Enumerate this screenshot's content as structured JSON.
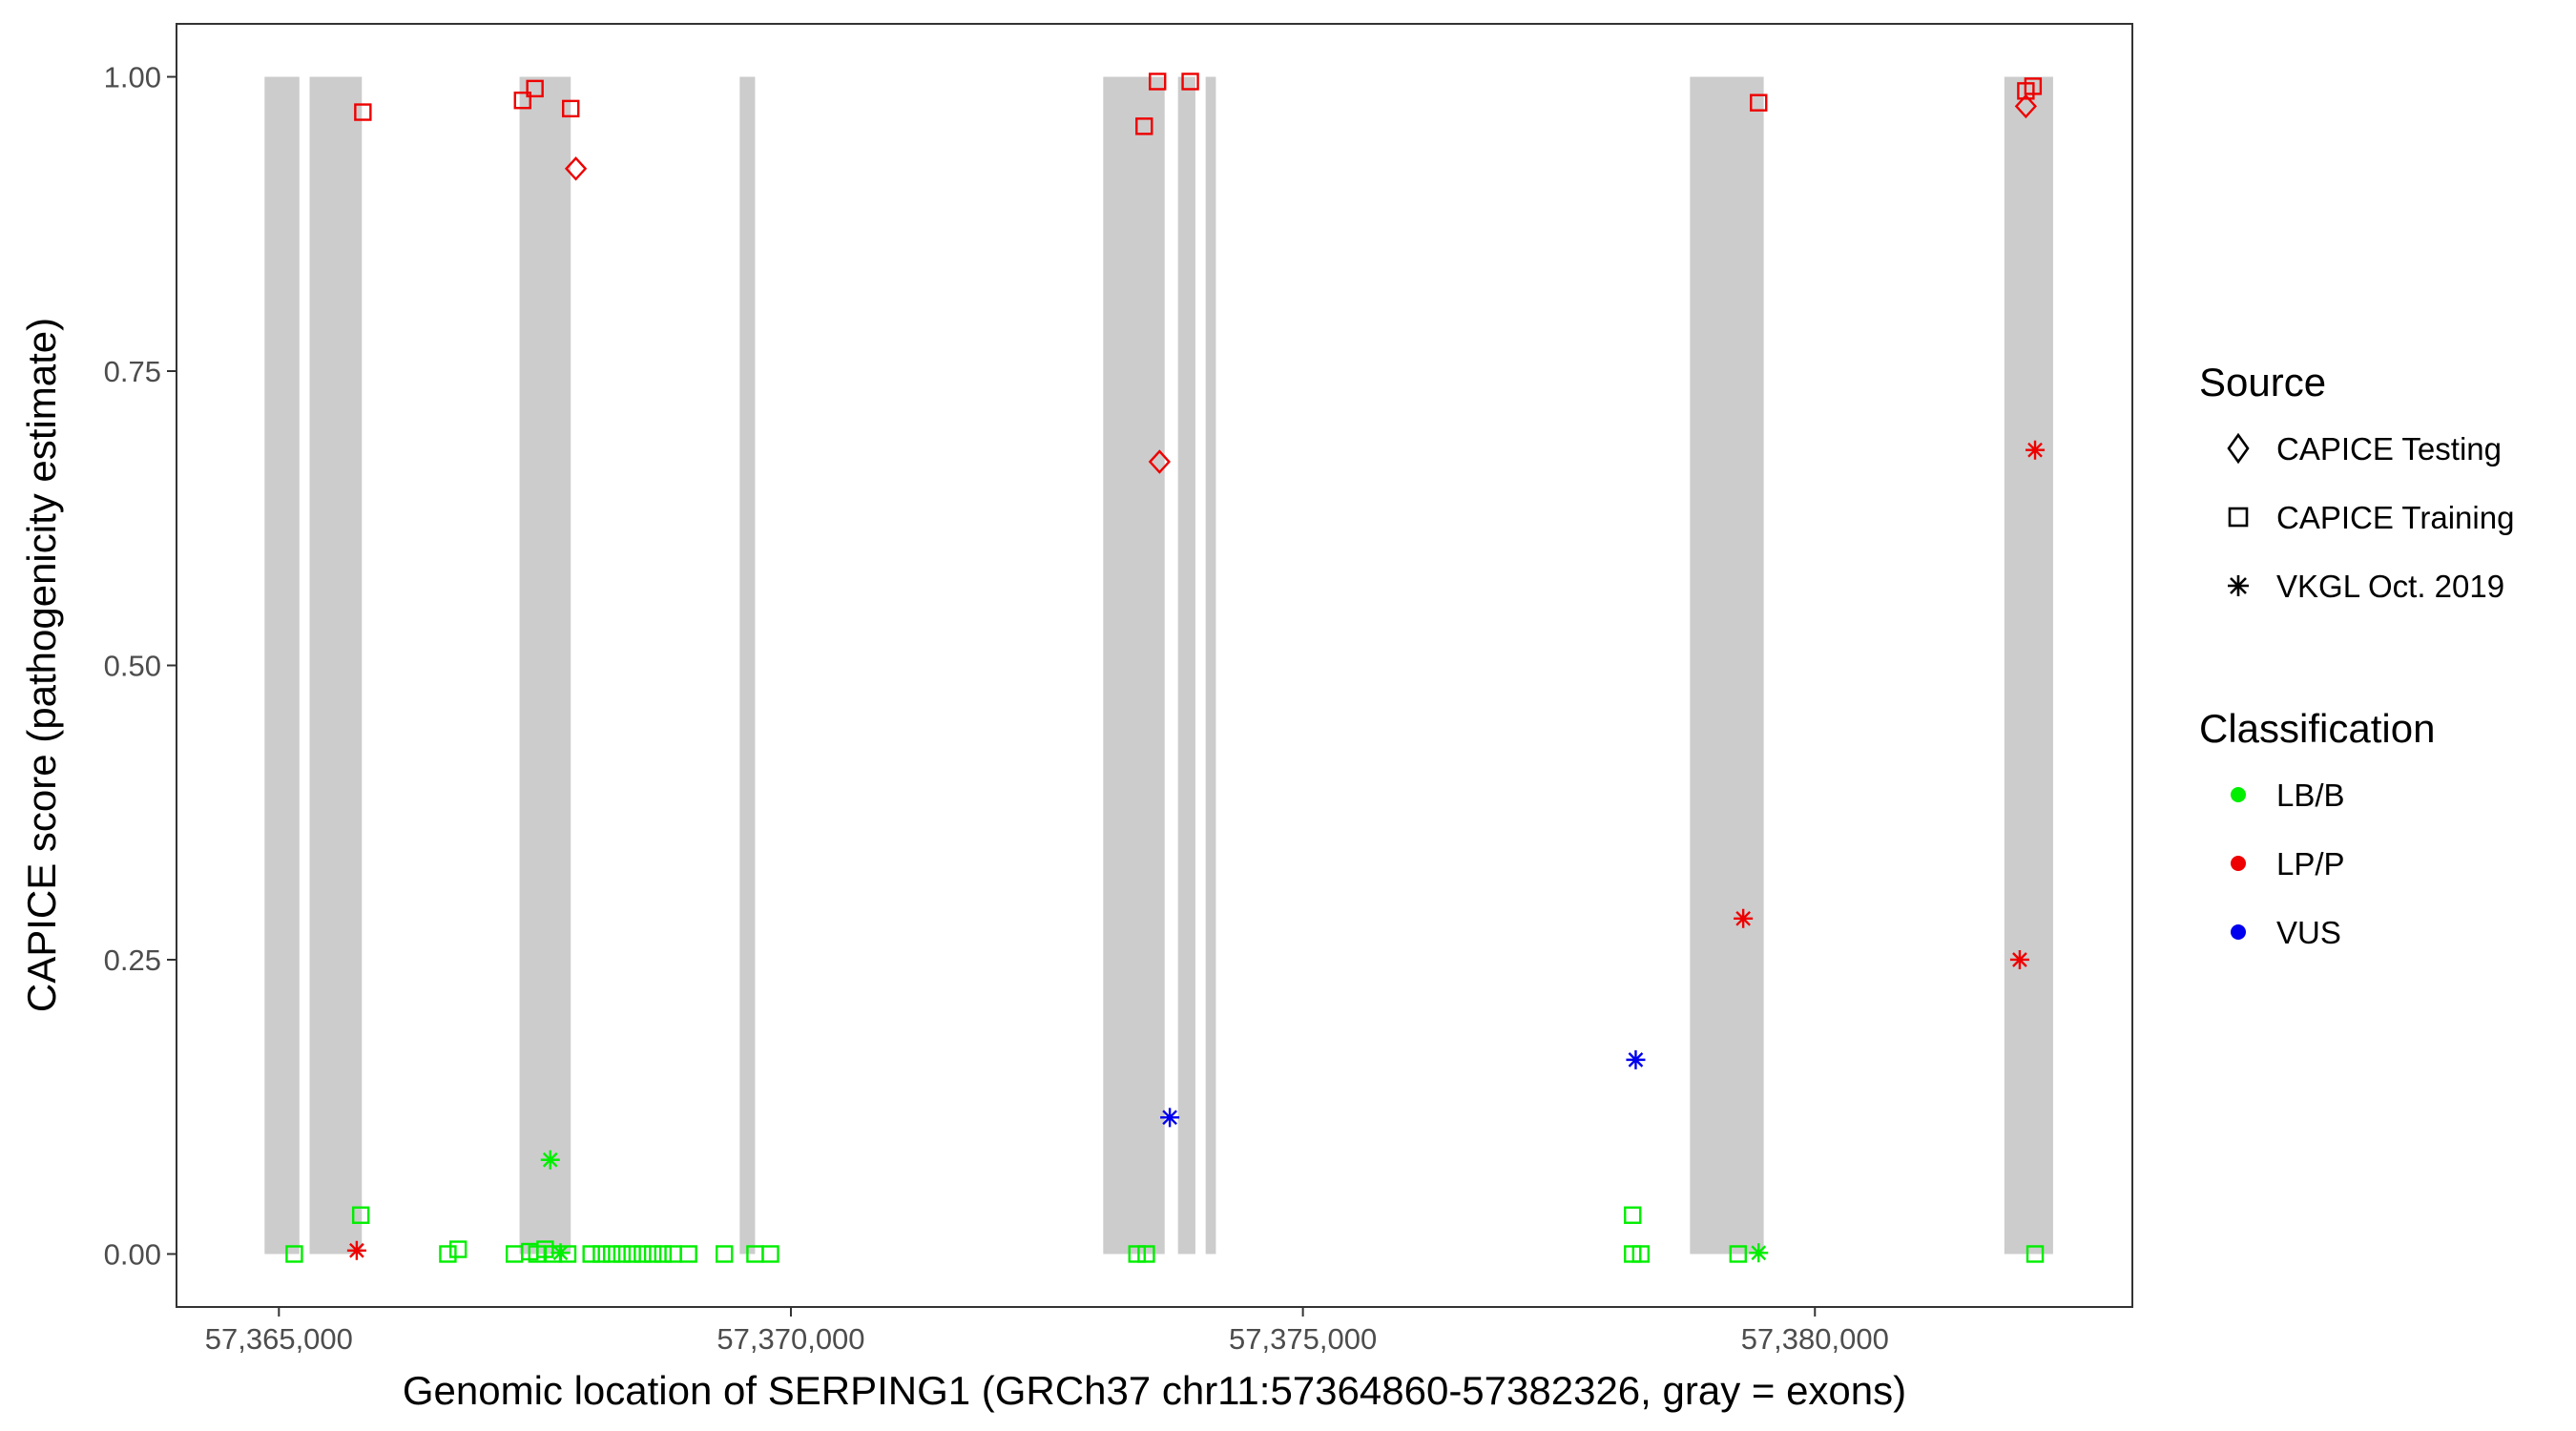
{
  "chart_data": {
    "type": "scatter",
    "xlabel": "Genomic location of SERPING1 (GRCh37 chr11:57364860-57382326, gray = exons)",
    "ylabel": "CAPICE score (pathogenicity estimate)",
    "xlim": [
      57364000,
      57383100
    ],
    "ylim": [
      -0.045,
      1.045
    ],
    "x_ticks": [
      57365000,
      57370000,
      57375000,
      57380000
    ],
    "x_tick_labels": [
      "57,365,000",
      "57,370,000",
      "57,375,000",
      "57,380,000"
    ],
    "y_ticks": [
      0,
      0.25,
      0.5,
      0.75,
      1.0
    ],
    "y_tick_labels": [
      "0.00",
      "0.25",
      "0.50",
      "0.75",
      "1.00"
    ],
    "grid": false,
    "exons": [
      [
        57364860,
        57365200
      ],
      [
        57365300,
        57365810
      ],
      [
        57367350,
        57367850
      ],
      [
        57369500,
        57369650
      ],
      [
        57373050,
        57373650
      ],
      [
        57373780,
        57373950
      ],
      [
        57374050,
        57374150
      ],
      [
        57378780,
        57379500
      ],
      [
        57381850,
        57382326
      ]
    ],
    "legend": {
      "placement": "right",
      "source_title": "Source",
      "source_entries": [
        {
          "label": "CAPICE Testing",
          "shape": "diamond"
        },
        {
          "label": "CAPICE Training",
          "shape": "square"
        },
        {
          "label": "VKGL Oct. 2019",
          "shape": "asterisk"
        }
      ],
      "class_title": "Classification",
      "class_entries": [
        {
          "label": "LB/B",
          "color": "#00ee00"
        },
        {
          "label": "LP/P",
          "color": "#ee0000"
        },
        {
          "label": "VUS",
          "color": "#0000ee"
        }
      ]
    },
    "colors": {
      "LB/B": "#00ee00",
      "LP/P": "#ee0000",
      "VUS": "#0000ee",
      "exon": "#cccccc"
    },
    "series": [
      {
        "source": "CAPICE Training",
        "classification": "LP/P",
        "points": [
          [
            57365820,
            0.97
          ],
          [
            57367380,
            0.98
          ],
          [
            57367500,
            0.99
          ],
          [
            57367850,
            0.973
          ],
          [
            57373450,
            0.958
          ],
          [
            57373580,
            0.996
          ],
          [
            57373900,
            0.996
          ],
          [
            57379450,
            0.978
          ],
          [
            57382060,
            0.988
          ],
          [
            57382130,
            0.992
          ]
        ]
      },
      {
        "source": "CAPICE Testing",
        "classification": "LP/P",
        "points": [
          [
            57367900,
            0.922
          ],
          [
            57373600,
            0.673
          ],
          [
            57382060,
            0.975
          ]
        ]
      },
      {
        "source": "VKGL Oct. 2019",
        "classification": "LP/P",
        "points": [
          [
            57365760,
            0.003
          ],
          [
            57379300,
            0.285
          ],
          [
            57382000,
            0.25
          ],
          [
            57382150,
            0.683
          ]
        ]
      },
      {
        "source": "VKGL Oct. 2019",
        "classification": "VUS",
        "points": [
          [
            57373700,
            0.116
          ],
          [
            57378250,
            0.165
          ]
        ]
      },
      {
        "source": "VKGL Oct. 2019",
        "classification": "LB/B",
        "points": [
          [
            57367650,
            0.08
          ],
          [
            57367750,
            0.001
          ],
          [
            57379450,
            0.001
          ]
        ]
      },
      {
        "source": "CAPICE Training",
        "classification": "LB/B",
        "points": [
          [
            57365150,
            0.0
          ],
          [
            57365800,
            0.033
          ],
          [
            57366650,
            0.0
          ],
          [
            57366750,
            0.004
          ],
          [
            57367300,
            0.0
          ],
          [
            57367450,
            0.002
          ],
          [
            57367520,
            0.0
          ],
          [
            57367600,
            0.004
          ],
          [
            57367680,
            0.0
          ],
          [
            57367820,
            0.0
          ],
          [
            57368050,
            0.0
          ],
          [
            57368150,
            0.0
          ],
          [
            57368250,
            0.0
          ],
          [
            57368350,
            0.0
          ],
          [
            57368450,
            0.0
          ],
          [
            57368550,
            0.0
          ],
          [
            57368650,
            0.0
          ],
          [
            57368750,
            0.0
          ],
          [
            57368850,
            0.0
          ],
          [
            57369000,
            0.0
          ],
          [
            57369350,
            0.0
          ],
          [
            57369650,
            0.0
          ],
          [
            57369800,
            0.0
          ],
          [
            57373380,
            0.0
          ],
          [
            57373470,
            0.0
          ],
          [
            57378220,
            0.033
          ],
          [
            57378220,
            0.0
          ],
          [
            57378300,
            0.0
          ],
          [
            57379250,
            0.0
          ],
          [
            57382150,
            0.0
          ]
        ]
      }
    ]
  }
}
